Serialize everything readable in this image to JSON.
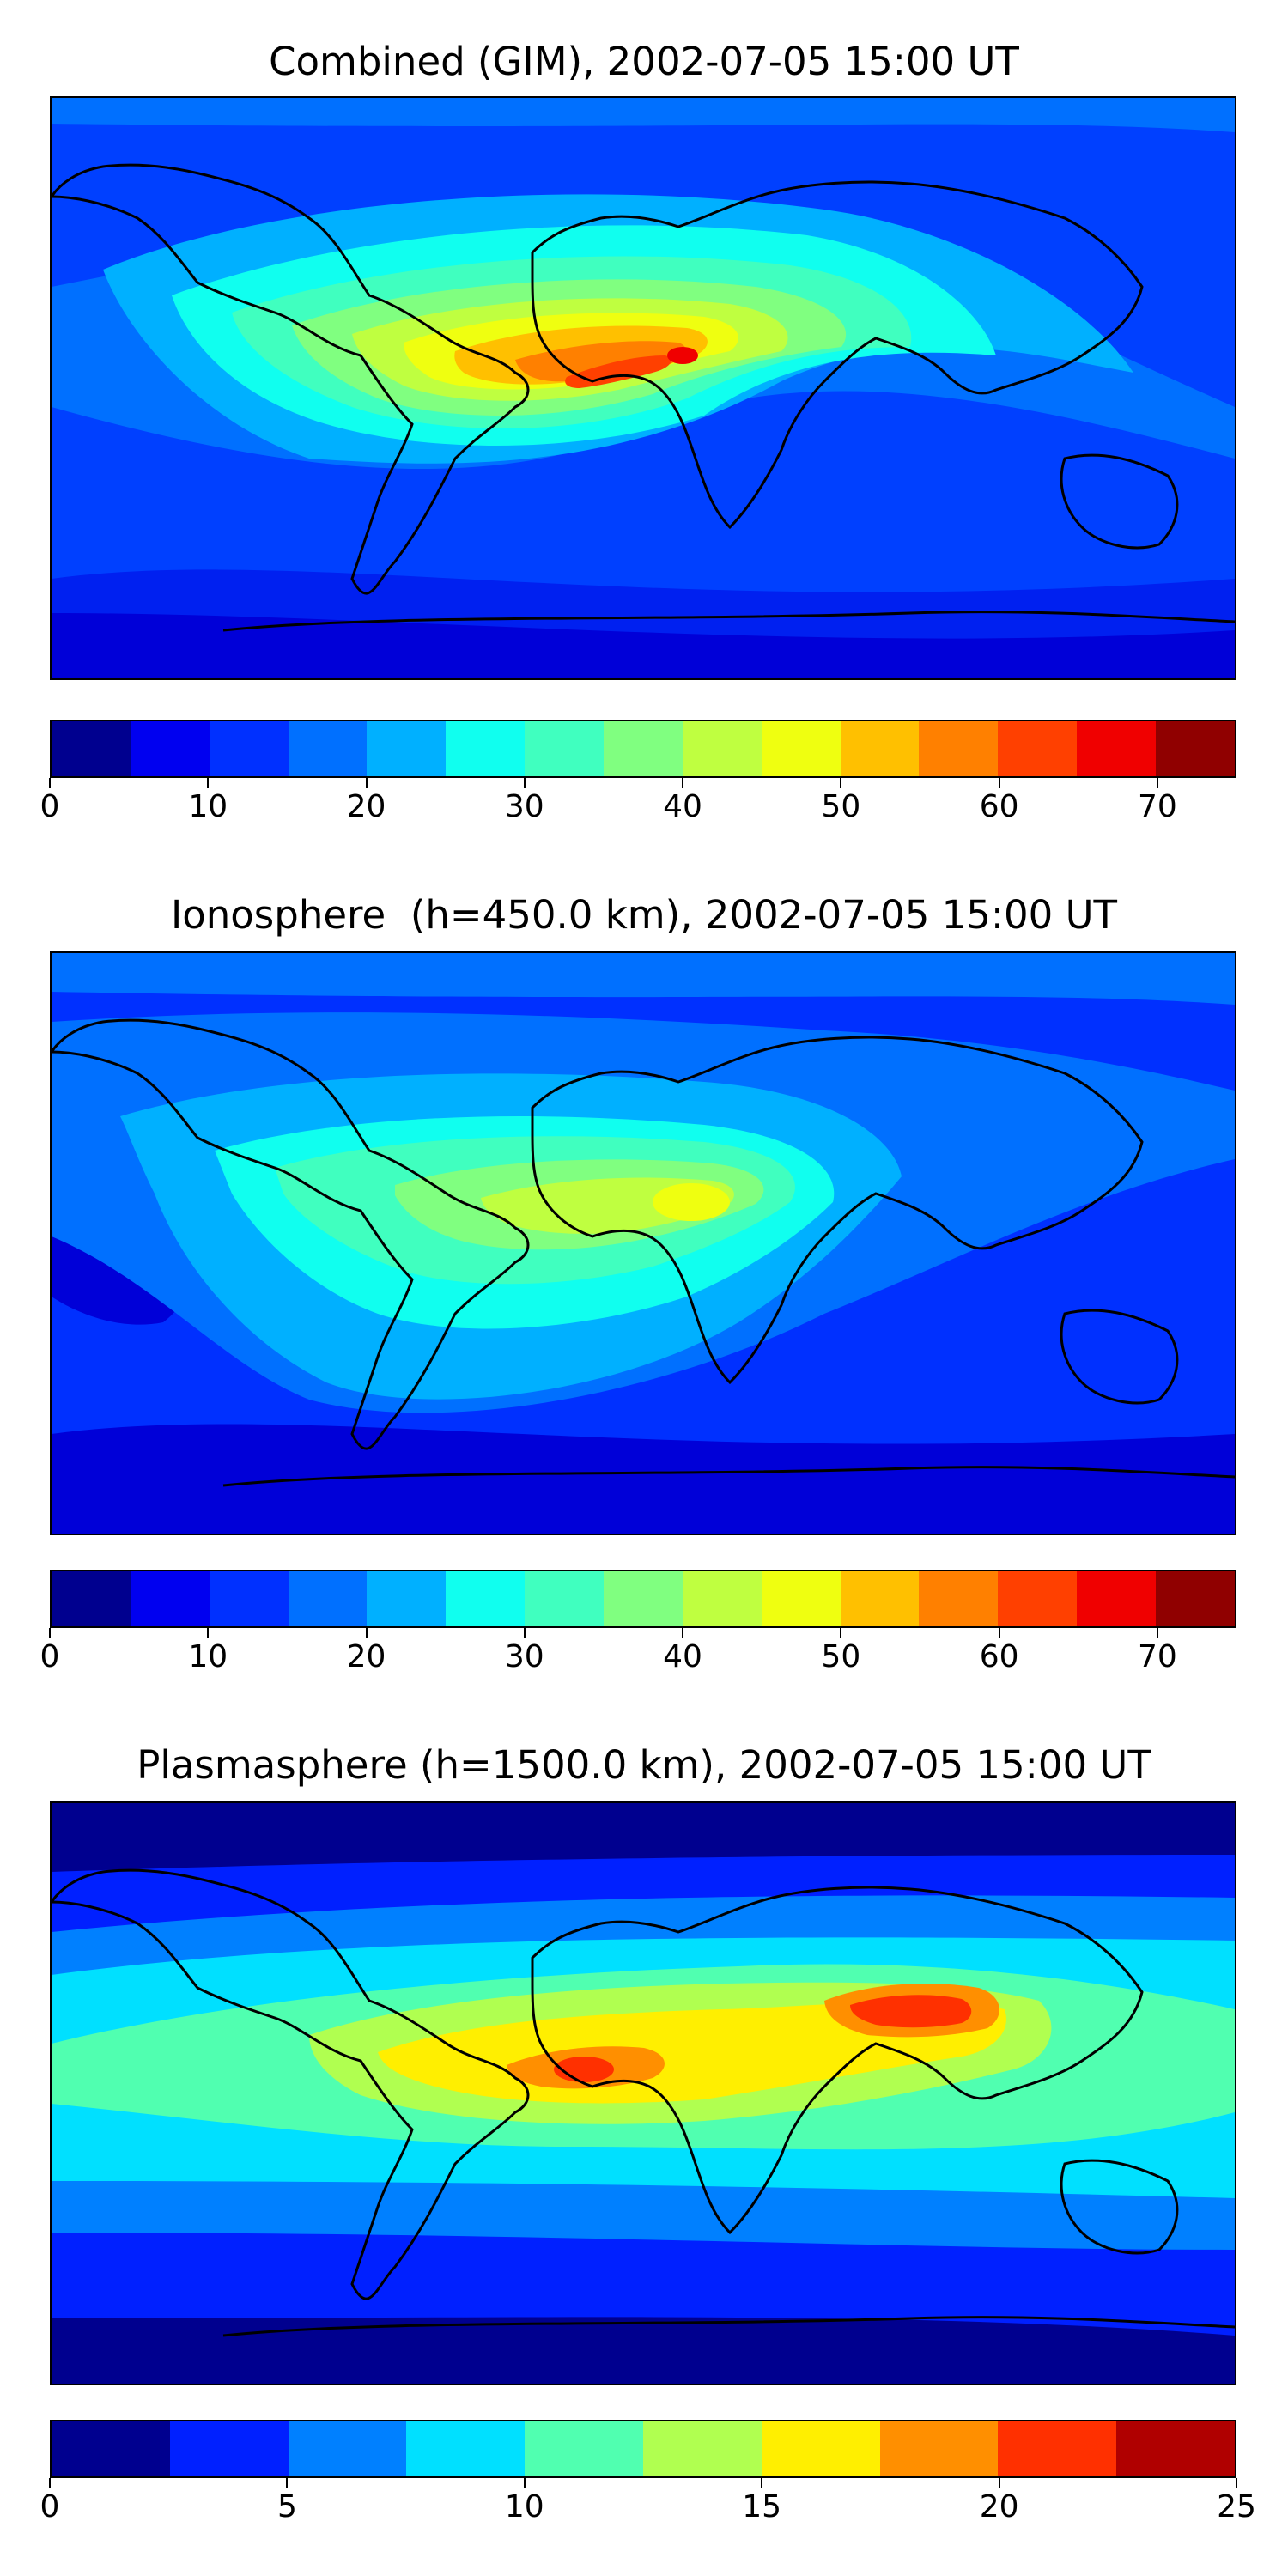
{
  "panels": [
    {
      "title": "Combined (GIM), 2002-07-05 15:00 UT",
      "colorbar": {
        "range": [
          0,
          75
        ],
        "ticks": [
          "0",
          "10",
          "20",
          "30",
          "40",
          "50",
          "60",
          "70"
        ],
        "tick_values": [
          0,
          10,
          20,
          30,
          40,
          50,
          60,
          70
        ],
        "colors": [
          "#00008f",
          "#0000f0",
          "#0030ff",
          "#0070ff",
          "#00b0ff",
          "#10ffef",
          "#40ffbf",
          "#80ff80",
          "#bfff40",
          "#efff10",
          "#ffc000",
          "#ff8000",
          "#ff4000",
          "#f00000",
          "#900000"
        ]
      }
    },
    {
      "title": "Ionosphere  (h=450.0 km), 2002-07-05 15:00 UT",
      "colorbar": {
        "range": [
          0,
          75
        ],
        "ticks": [
          "0",
          "10",
          "20",
          "30",
          "40",
          "50",
          "60",
          "70"
        ],
        "tick_values": [
          0,
          10,
          20,
          30,
          40,
          50,
          60,
          70
        ],
        "colors": [
          "#00008f",
          "#0000f0",
          "#0030ff",
          "#0070ff",
          "#00b0ff",
          "#10ffef",
          "#40ffbf",
          "#80ff80",
          "#bfff40",
          "#efff10",
          "#ffc000",
          "#ff8000",
          "#ff4000",
          "#f00000",
          "#900000"
        ]
      }
    },
    {
      "title": "Plasmasphere (h=1500.0 km), 2002-07-05 15:00 UT",
      "colorbar": {
        "range": [
          0,
          25
        ],
        "ticks": [
          "0",
          "5",
          "10",
          "15",
          "20",
          "25"
        ],
        "tick_values": [
          0,
          5,
          10,
          15,
          20,
          25
        ],
        "colors": [
          "#00008f",
          "#0020ff",
          "#0080ff",
          "#00e0ff",
          "#50ffb0",
          "#b0ff50",
          "#ffef00",
          "#ff8f00",
          "#ff3000",
          "#b00000"
        ]
      }
    }
  ]
}
